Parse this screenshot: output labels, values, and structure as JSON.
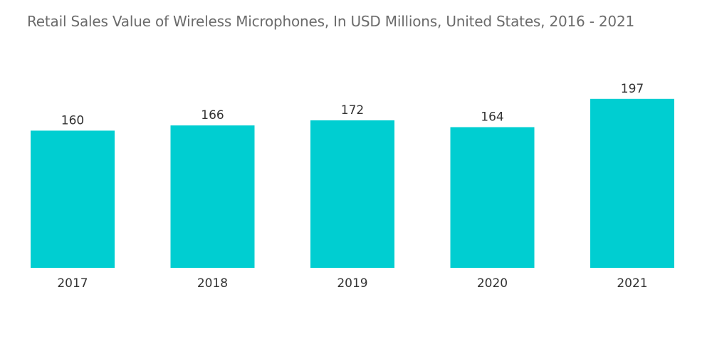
{
  "chart_data": {
    "type": "bar",
    "title": "Retail Sales Value of Wireless Microphones, In USD Millions, United States, 2016 - 2021",
    "categories": [
      "2017",
      "2018",
      "2019",
      "2020",
      "2021"
    ],
    "values": [
      160,
      166,
      172,
      164,
      197
    ],
    "xlabel": "",
    "ylabel": "",
    "ylim": [
      0,
      200
    ],
    "grid": false,
    "legend": "none",
    "bar_color": "#00CED1",
    "data_labels": true
  }
}
